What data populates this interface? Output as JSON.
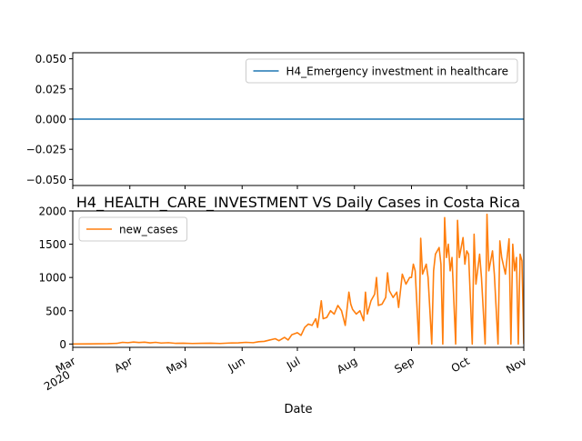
{
  "chart_data": [
    {
      "type": "line",
      "title": "",
      "xlabel": "",
      "ylabel": "",
      "ylim": [
        -0.055,
        0.055
      ],
      "yticks": [
        "0.050",
        "0.025",
        "0.000",
        "−0.025",
        "−0.050"
      ],
      "ytick_values": [
        0.05,
        0.025,
        0.0,
        -0.025,
        -0.05
      ],
      "legend_position": "upper-right",
      "series": [
        {
          "name": "H4_Emergency investment in healthcare",
          "color": "#1f77b4",
          "x": [
            "2020-03-01",
            "2020-11-01"
          ],
          "values": [
            0,
            0
          ]
        }
      ]
    },
    {
      "type": "line",
      "title": "H4_HEALTH_CARE_INVESTMENT VS Daily Cases in Costa Rica",
      "xlabel": "Date",
      "ylabel": "",
      "ylim": [
        -50,
        2000
      ],
      "yticks": [
        "0",
        "500",
        "1000",
        "1500",
        "2000"
      ],
      "ytick_values": [
        0,
        500,
        1000,
        1500,
        2000
      ],
      "xticks": [
        {
          "date": "2020-03-01",
          "label": "Mar",
          "sublabel": "2020"
        },
        {
          "date": "2020-04-01",
          "label": "Apr"
        },
        {
          "date": "2020-05-01",
          "label": "May"
        },
        {
          "date": "2020-06-01",
          "label": "Jun"
        },
        {
          "date": "2020-07-01",
          "label": "Jul"
        },
        {
          "date": "2020-08-01",
          "label": "Aug"
        },
        {
          "date": "2020-09-01",
          "label": "Sep"
        },
        {
          "date": "2020-10-01",
          "label": "Oct"
        },
        {
          "date": "2020-11-01",
          "label": "Nov"
        }
      ],
      "legend_position": "upper-left",
      "series": [
        {
          "name": "new_cases",
          "color": "#ff7f0e",
          "points": [
            [
              "2020-03-01",
              0
            ],
            [
              "2020-03-10",
              2
            ],
            [
              "2020-03-20",
              5
            ],
            [
              "2020-03-25",
              10
            ],
            [
              "2020-03-28",
              25
            ],
            [
              "2020-03-31",
              20
            ],
            [
              "2020-04-03",
              30
            ],
            [
              "2020-04-06",
              22
            ],
            [
              "2020-04-09",
              28
            ],
            [
              "2020-04-12",
              18
            ],
            [
              "2020-04-15",
              25
            ],
            [
              "2020-04-18",
              15
            ],
            [
              "2020-04-22",
              20
            ],
            [
              "2020-04-26",
              10
            ],
            [
              "2020-04-30",
              12
            ],
            [
              "2020-05-05",
              8
            ],
            [
              "2020-05-10",
              10
            ],
            [
              "2020-05-15",
              12
            ],
            [
              "2020-05-20",
              8
            ],
            [
              "2020-05-25",
              15
            ],
            [
              "2020-05-30",
              18
            ],
            [
              "2020-06-03",
              25
            ],
            [
              "2020-06-07",
              20
            ],
            [
              "2020-06-10",
              35
            ],
            [
              "2020-06-13",
              40
            ],
            [
              "2020-06-16",
              60
            ],
            [
              "2020-06-19",
              80
            ],
            [
              "2020-06-21",
              50
            ],
            [
              "2020-06-24",
              100
            ],
            [
              "2020-06-26",
              60
            ],
            [
              "2020-06-28",
              140
            ],
            [
              "2020-07-01",
              170
            ],
            [
              "2020-07-03",
              130
            ],
            [
              "2020-07-05",
              250
            ],
            [
              "2020-07-07",
              300
            ],
            [
              "2020-07-09",
              280
            ],
            [
              "2020-07-11",
              380
            ],
            [
              "2020-07-12",
              250
            ],
            [
              "2020-07-13",
              450
            ],
            [
              "2020-07-14",
              650
            ],
            [
              "2020-07-15",
              380
            ],
            [
              "2020-07-17",
              400
            ],
            [
              "2020-07-19",
              500
            ],
            [
              "2020-07-21",
              450
            ],
            [
              "2020-07-23",
              580
            ],
            [
              "2020-07-25",
              500
            ],
            [
              "2020-07-27",
              280
            ],
            [
              "2020-07-29",
              780
            ],
            [
              "2020-07-30",
              600
            ],
            [
              "2020-07-31",
              520
            ],
            [
              "2020-08-02",
              450
            ],
            [
              "2020-08-04",
              500
            ],
            [
              "2020-08-06",
              350
            ],
            [
              "2020-08-07",
              780
            ],
            [
              "2020-08-08",
              450
            ],
            [
              "2020-08-10",
              650
            ],
            [
              "2020-08-12",
              750
            ],
            [
              "2020-08-13",
              1000
            ],
            [
              "2020-08-14",
              580
            ],
            [
              "2020-08-16",
              600
            ],
            [
              "2020-08-18",
              700
            ],
            [
              "2020-08-19",
              1070
            ],
            [
              "2020-08-20",
              800
            ],
            [
              "2020-08-22",
              700
            ],
            [
              "2020-08-24",
              780
            ],
            [
              "2020-08-25",
              550
            ],
            [
              "2020-08-27",
              1050
            ],
            [
              "2020-08-29",
              900
            ],
            [
              "2020-08-31",
              1000
            ],
            [
              "2020-09-01",
              1000
            ],
            [
              "2020-09-02",
              1200
            ],
            [
              "2020-09-03",
              1100
            ],
            [
              "2020-09-05",
              0
            ],
            [
              "2020-09-06",
              1590
            ],
            [
              "2020-09-07",
              1050
            ],
            [
              "2020-09-09",
              1200
            ],
            [
              "2020-09-10",
              1000
            ],
            [
              "2020-09-12",
              0
            ],
            [
              "2020-09-13",
              1100
            ],
            [
              "2020-09-14",
              1350
            ],
            [
              "2020-09-16",
              1450
            ],
            [
              "2020-09-17",
              1200
            ],
            [
              "2020-09-18",
              0
            ],
            [
              "2020-09-19",
              1900
            ],
            [
              "2020-09-20",
              1300
            ],
            [
              "2020-09-21",
              1500
            ],
            [
              "2020-09-22",
              1100
            ],
            [
              "2020-09-23",
              1300
            ],
            [
              "2020-09-25",
              0
            ],
            [
              "2020-09-26",
              1860
            ],
            [
              "2020-09-27",
              1300
            ],
            [
              "2020-09-29",
              1600
            ],
            [
              "2020-09-30",
              1200
            ],
            [
              "2020-10-01",
              1400
            ],
            [
              "2020-10-02",
              1350
            ],
            [
              "2020-10-04",
              0
            ],
            [
              "2020-10-05",
              1650
            ],
            [
              "2020-10-06",
              900
            ],
            [
              "2020-10-08",
              1350
            ],
            [
              "2020-10-09",
              1000
            ],
            [
              "2020-10-11",
              0
            ],
            [
              "2020-10-12",
              1950
            ],
            [
              "2020-10-13",
              1100
            ],
            [
              "2020-10-15",
              1400
            ],
            [
              "2020-10-16",
              1050
            ],
            [
              "2020-10-18",
              0
            ],
            [
              "2020-10-19",
              1550
            ],
            [
              "2020-10-20",
              1300
            ],
            [
              "2020-10-22",
              1050
            ],
            [
              "2020-10-24",
              1580
            ],
            [
              "2020-10-25",
              0
            ],
            [
              "2020-10-26",
              1500
            ],
            [
              "2020-10-27",
              1100
            ],
            [
              "2020-10-28",
              1300
            ],
            [
              "2020-10-29",
              0
            ],
            [
              "2020-10-30",
              1350
            ],
            [
              "2020-10-31",
              1250
            ],
            [
              "2020-11-01",
              0
            ]
          ]
        }
      ]
    }
  ]
}
